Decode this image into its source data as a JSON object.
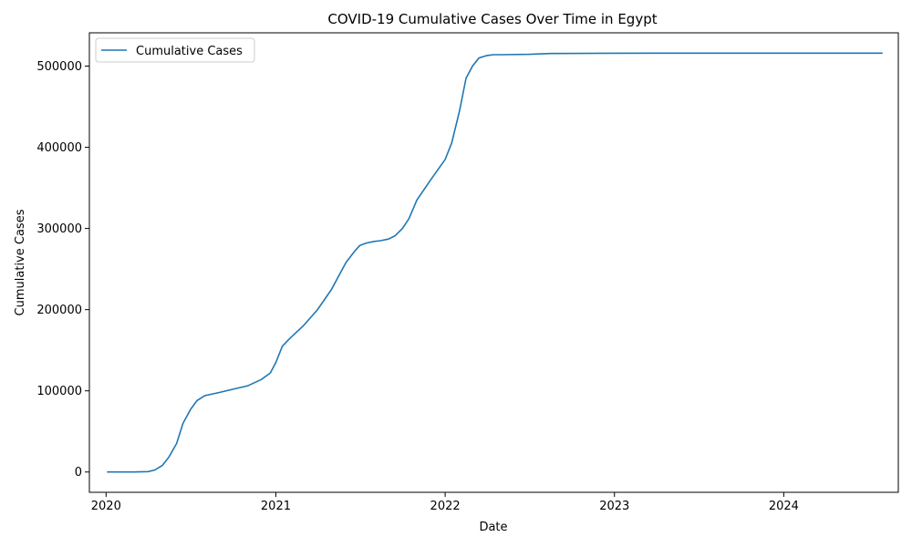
{
  "chart_data": {
    "type": "line",
    "title": "COVID-19 Cumulative Cases Over Time in Egypt",
    "xlabel": "Date",
    "ylabel": "Cumulative Cases",
    "x_ticks": [
      "2020",
      "2021",
      "2022",
      "2023",
      "2024"
    ],
    "y_ticks": [
      "0",
      "100000",
      "200000",
      "300000",
      "400000",
      "500000"
    ],
    "ylim": [
      -25000,
      541000
    ],
    "xlim": [
      "2019-11-26",
      "2024-09-04"
    ],
    "grid": false,
    "legend_position": "top-left",
    "series": [
      {
        "name": "Cumulative Cases",
        "color": "#1f77b4",
        "x": [
          "2020-01-03",
          "2020-03-01",
          "2020-04-01",
          "2020-04-15",
          "2020-05-01",
          "2020-05-15",
          "2020-06-01",
          "2020-06-15",
          "2020-07-01",
          "2020-07-15",
          "2020-08-01",
          "2020-09-01",
          "2020-10-01",
          "2020-11-01",
          "2020-12-01",
          "2020-12-20",
          "2021-01-01",
          "2021-01-15",
          "2021-02-01",
          "2021-03-01",
          "2021-04-01",
          "2021-05-01",
          "2021-06-01",
          "2021-06-20",
          "2021-07-01",
          "2021-07-15",
          "2021-08-01",
          "2021-08-15",
          "2021-09-01",
          "2021-09-15",
          "2021-10-01",
          "2021-10-15",
          "2021-11-01",
          "2021-12-01",
          "2022-01-01",
          "2022-01-15",
          "2022-02-01",
          "2022-02-15",
          "2022-03-01",
          "2022-03-15",
          "2022-04-01",
          "2022-04-15",
          "2022-05-01",
          "2022-07-01",
          "2022-08-15",
          "2022-12-01",
          "2023-04-01",
          "2023-10-01",
          "2024-03-01",
          "2024-08-01"
        ],
        "y": [
          0,
          0,
          500,
          2500,
          8000,
          18000,
          35000,
          60000,
          77000,
          88000,
          94000,
          98000,
          102000,
          106000,
          114000,
          122000,
          135000,
          155000,
          165000,
          180000,
          200000,
          225000,
          258000,
          272000,
          279000,
          282000,
          284000,
          285000,
          287000,
          291000,
          300000,
          312000,
          335000,
          360000,
          385000,
          405000,
          445000,
          485000,
          500000,
          510000,
          513000,
          514000,
          514000,
          514500,
          515500,
          515800,
          516000,
          516000,
          516000,
          516000
        ]
      }
    ]
  }
}
